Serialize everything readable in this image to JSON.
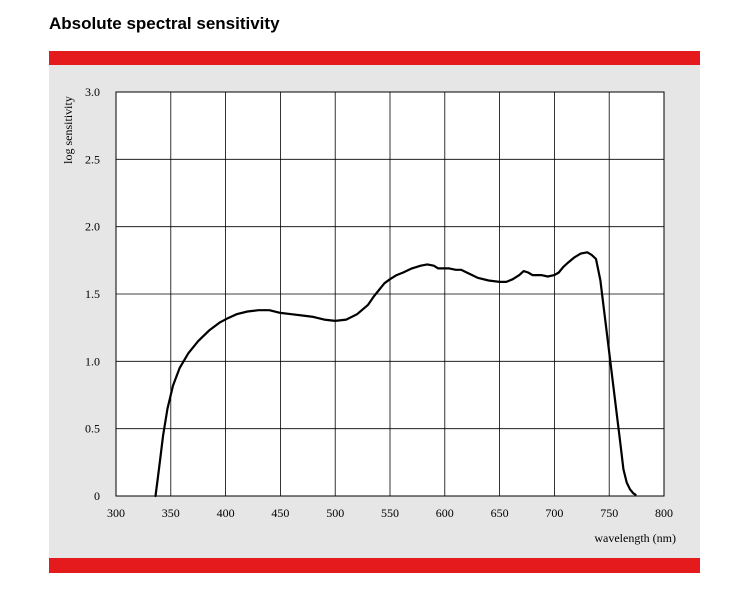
{
  "title": "Absolute spectral sensitivity",
  "colors": {
    "band": "#e41a1c",
    "panel": "#e6e6e6",
    "plot_bg": "#ffffff",
    "grid": "#000000",
    "curve": "#000000"
  },
  "chart_data": {
    "type": "line",
    "title": "Absolute spectral sensitivity",
    "xlabel": "wavelength (nm)",
    "ylabel": "log sensitivity",
    "xlim": [
      300,
      800
    ],
    "ylim": [
      0,
      3.0
    ],
    "x_ticks": [
      300,
      350,
      400,
      450,
      500,
      550,
      600,
      650,
      700,
      750,
      800
    ],
    "y_ticks": [
      0,
      0.5,
      1.0,
      1.5,
      2.0,
      2.5,
      3.0
    ],
    "y_tick_labels": [
      "0",
      "0.5",
      "1.0",
      "1.5",
      "2.0",
      "2.5",
      "3.0"
    ],
    "grid": true,
    "series": [
      {
        "x": [
          336,
          338,
          340,
          343,
          347,
          352,
          358,
          366,
          375,
          385,
          395,
          402,
          410,
          420,
          430,
          440,
          450,
          460,
          470,
          480,
          490,
          500,
          510,
          520,
          530,
          535,
          540,
          545,
          550,
          556,
          562,
          570,
          578,
          584,
          590,
          594,
          598,
          604,
          610,
          615,
          620,
          625,
          630,
          640,
          650,
          656,
          662,
          668,
          672,
          676,
          680,
          684,
          688,
          694,
          700,
          704,
          708,
          712,
          718,
          724,
          730,
          734,
          738,
          742,
          745,
          748,
          751,
          754,
          757,
          760,
          763,
          766,
          769,
          772,
          774
        ],
        "y": [
          0.0,
          0.12,
          0.25,
          0.45,
          0.65,
          0.82,
          0.95,
          1.06,
          1.15,
          1.23,
          1.29,
          1.32,
          1.35,
          1.37,
          1.38,
          1.38,
          1.36,
          1.35,
          1.34,
          1.33,
          1.31,
          1.3,
          1.31,
          1.35,
          1.42,
          1.48,
          1.53,
          1.58,
          1.61,
          1.64,
          1.66,
          1.69,
          1.71,
          1.72,
          1.71,
          1.69,
          1.69,
          1.69,
          1.68,
          1.68,
          1.66,
          1.64,
          1.62,
          1.6,
          1.59,
          1.59,
          1.61,
          1.64,
          1.67,
          1.66,
          1.64,
          1.64,
          1.64,
          1.63,
          1.64,
          1.66,
          1.7,
          1.73,
          1.77,
          1.8,
          1.81,
          1.79,
          1.76,
          1.6,
          1.4,
          1.2,
          1.0,
          0.8,
          0.6,
          0.4,
          0.2,
          0.1,
          0.05,
          0.02,
          0.01
        ]
      }
    ]
  }
}
